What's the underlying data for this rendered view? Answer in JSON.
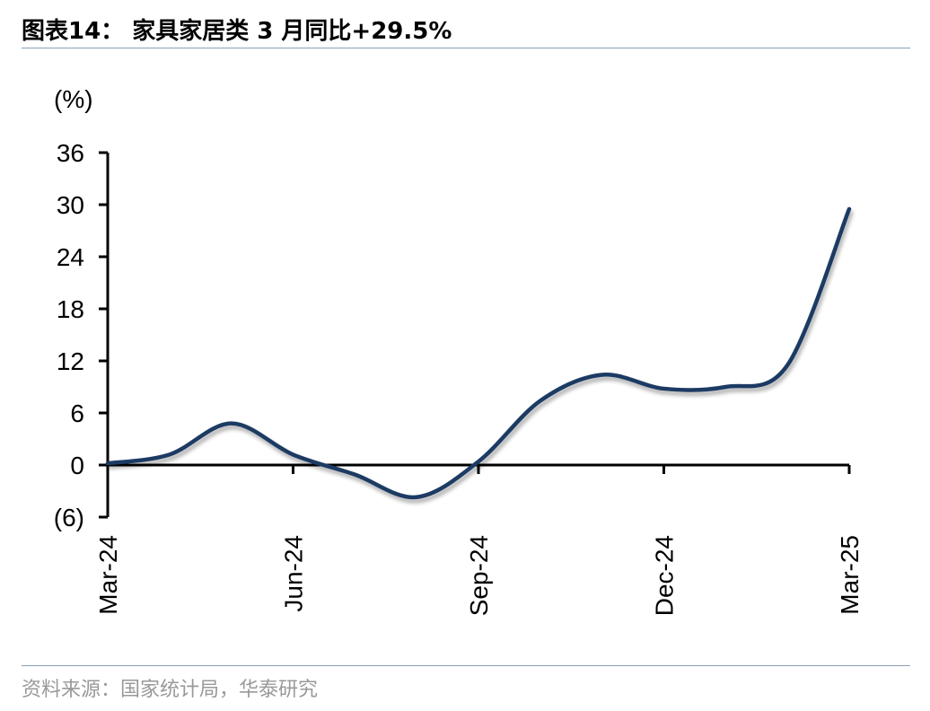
{
  "header": {
    "title": "图表14：  家具家居类 3 月同比+29.5%"
  },
  "footer": {
    "source": "资料来源：国家统计局，华泰研究"
  },
  "chart_data": {
    "type": "line",
    "ylabel": "(%)",
    "ylim": [
      -6,
      36
    ],
    "y_ticks": [
      -6,
      0,
      6,
      12,
      18,
      24,
      30,
      36
    ],
    "y_tick_labels": [
      "(6)",
      "0",
      "6",
      "12",
      "18",
      "24",
      "30",
      "36"
    ],
    "x_tick_labels": [
      "Mar-24",
      "Jun-24",
      "Sep-24",
      "Dec-24",
      "Mar-25"
    ],
    "x": [
      "Mar-24",
      "Apr-24",
      "May-24",
      "Jun-24",
      "Jul-24",
      "Aug-24",
      "Sep-24",
      "Oct-24",
      "Nov-24",
      "Dec-24",
      "Jan-25",
      "Feb-25",
      "Mar-25"
    ],
    "series": [
      {
        "values": [
          0.2,
          1.2,
          4.8,
          1.2,
          -1.1,
          -3.7,
          0.4,
          7.4,
          10.4,
          8.8,
          9.0,
          11.5,
          29.5
        ],
        "color": "#1f3b64"
      }
    ],
    "grid": false,
    "legend": "none"
  }
}
